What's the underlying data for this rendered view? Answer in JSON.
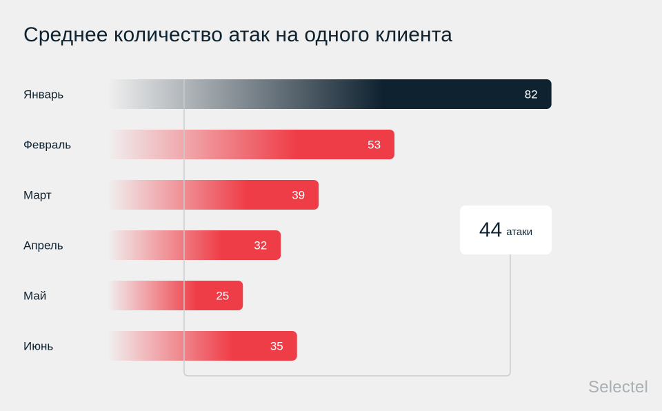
{
  "title": "Среднее количество атак на одного клиента",
  "brand": "Selectel",
  "callout": {
    "value": "44",
    "unit": "атаки"
  },
  "colors": {
    "highlight": "#0f2230",
    "bar": "#ef3d47",
    "reference_line": "#c8cdd0",
    "label": "#0f2230",
    "background": "#f0f0f0"
  },
  "chart_data": {
    "type": "bar",
    "orientation": "horizontal",
    "title": "Среднее количество атак на одного клиента",
    "categories": [
      "Январь",
      "Февраль",
      "Март",
      "Апрель",
      "Май",
      "Июнь"
    ],
    "values": [
      82,
      53,
      39,
      32,
      25,
      35
    ],
    "highlighted_category": "Январь",
    "reference_value": 44,
    "reference_label": "44 атаки",
    "xlabel": "",
    "ylabel": "",
    "grid": false,
    "legend": "none"
  }
}
